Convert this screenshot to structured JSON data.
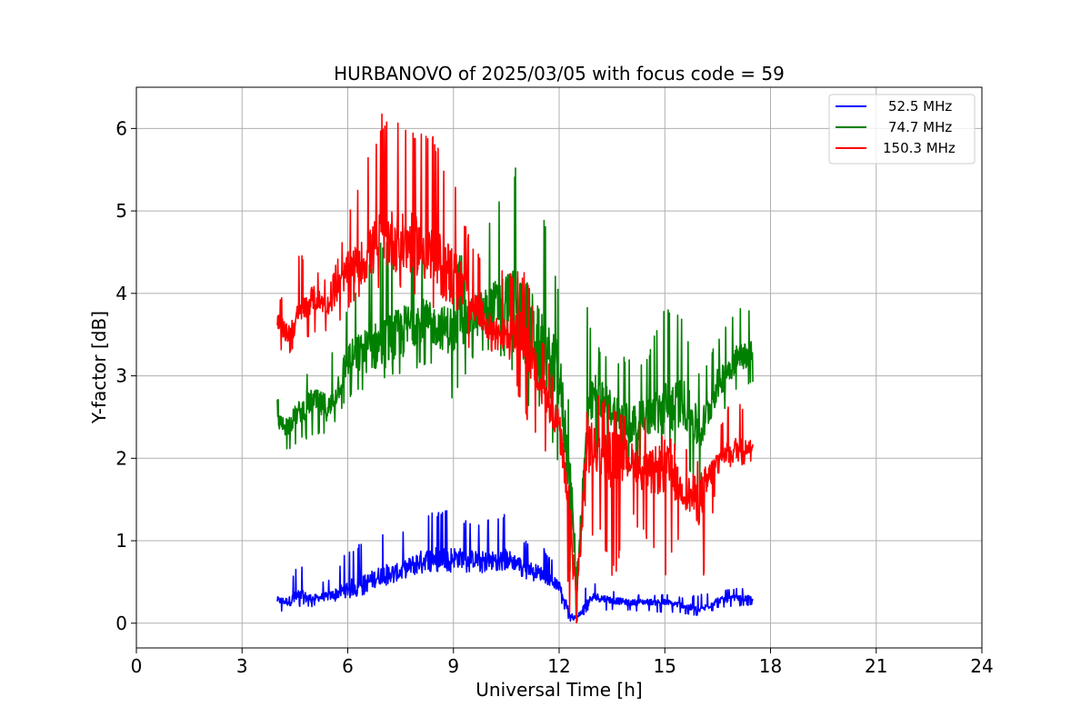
{
  "chart_data": {
    "type": "line",
    "title": "HURBANOVO of 2025/03/05 with focus code = 59",
    "xlabel": "Universal Time [h]",
    "ylabel": "Y-factor [dB]",
    "xlim": [
      0,
      24
    ],
    "ylim": [
      -0.3,
      6.5
    ],
    "x_ticks": [
      0,
      3,
      6,
      9,
      12,
      15,
      18,
      21,
      24
    ],
    "x_tick_labels": [
      "0",
      "3",
      "6",
      "9",
      "12",
      "15",
      "18",
      "21",
      "24"
    ],
    "y_ticks": [
      0,
      1,
      2,
      3,
      4,
      5,
      6
    ],
    "y_tick_labels": [
      "0",
      "1",
      "2",
      "3",
      "4",
      "5",
      "6"
    ],
    "grid": true,
    "legend_position": "top-right",
    "series": [
      {
        "name": "52.5 MHz",
        "color": "#0000ff",
        "x": [
          4.0,
          4.3,
          4.6,
          5.0,
          5.5,
          6.0,
          6.5,
          7.0,
          7.5,
          8.0,
          8.5,
          9.0,
          9.5,
          10.0,
          10.5,
          11.0,
          11.5,
          12.0,
          12.3,
          12.5,
          12.8,
          13.0,
          13.5,
          14.0,
          14.5,
          15.0,
          15.5,
          16.0,
          16.5,
          17.0,
          17.5
        ],
        "y": [
          0.28,
          0.26,
          0.32,
          0.3,
          0.33,
          0.42,
          0.48,
          0.6,
          0.62,
          0.75,
          0.8,
          0.8,
          0.78,
          0.75,
          0.78,
          0.7,
          0.6,
          0.45,
          0.12,
          0.05,
          0.25,
          0.32,
          0.28,
          0.25,
          0.26,
          0.25,
          0.22,
          0.15,
          0.28,
          0.3,
          0.3
        ],
        "max": [
          0.38,
          0.4,
          0.78,
          0.45,
          0.55,
          0.9,
          1.0,
          1.1,
          1.1,
          1.3,
          1.37,
          1.37,
          1.2,
          1.3,
          1.37,
          1.0,
          0.95,
          0.65,
          0.3,
          0.2,
          0.48,
          0.48,
          0.4,
          0.35,
          0.35,
          0.35,
          0.32,
          0.35,
          0.4,
          0.42,
          0.42
        ],
        "min": [
          0.15,
          0.12,
          0.2,
          0.2,
          0.25,
          0.3,
          0.35,
          0.45,
          0.5,
          0.6,
          0.62,
          0.62,
          0.6,
          0.62,
          0.65,
          0.55,
          0.45,
          0.3,
          0.02,
          0.0,
          0.15,
          0.18,
          0.15,
          0.15,
          0.15,
          0.12,
          0.12,
          0.08,
          0.18,
          0.2,
          0.22
        ]
      },
      {
        "name": "74.7 MHz",
        "color": "#008000",
        "x": [
          4.0,
          4.3,
          4.6,
          5.0,
          5.5,
          6.0,
          6.5,
          7.0,
          7.5,
          8.0,
          8.5,
          9.0,
          9.5,
          10.0,
          10.5,
          11.0,
          11.5,
          12.0,
          12.3,
          12.5,
          12.8,
          13.0,
          13.5,
          14.0,
          14.5,
          15.0,
          15.5,
          16.0,
          16.5,
          17.0,
          17.5
        ],
        "y": [
          2.4,
          2.4,
          2.55,
          2.7,
          2.6,
          3.2,
          3.3,
          3.4,
          3.5,
          3.7,
          3.6,
          3.55,
          3.7,
          3.8,
          3.9,
          3.7,
          3.3,
          3.0,
          1.8,
          0.5,
          2.4,
          2.8,
          2.6,
          2.4,
          2.5,
          2.6,
          2.7,
          2.3,
          2.9,
          3.2,
          3.3
        ],
        "max": [
          2.75,
          2.8,
          3.0,
          3.1,
          3.3,
          3.9,
          4.4,
          4.7,
          4.9,
          4.7,
          4.5,
          4.4,
          4.6,
          5.0,
          5.4,
          5.8,
          5.1,
          4.1,
          2.5,
          1.2,
          3.9,
          3.4,
          3.2,
          3.3,
          3.2,
          3.95,
          3.7,
          3.0,
          3.5,
          3.8,
          3.85
        ],
        "min": [
          2.05,
          2.1,
          2.2,
          2.25,
          2.3,
          2.7,
          2.85,
          2.9,
          3.0,
          3.1,
          3.1,
          2.6,
          3.2,
          3.3,
          3.2,
          2.6,
          2.5,
          1.9,
          0.5,
          0.0,
          1.9,
          2.0,
          1.9,
          1.8,
          2.0,
          2.0,
          2.0,
          1.6,
          2.4,
          2.8,
          2.9
        ]
      },
      {
        "name": "150.3 MHz",
        "color": "#ff0000",
        "x": [
          4.0,
          4.3,
          4.6,
          5.0,
          5.5,
          6.0,
          6.5,
          7.0,
          7.5,
          8.0,
          8.5,
          9.0,
          9.5,
          10.0,
          10.5,
          11.0,
          11.5,
          12.0,
          12.3,
          12.5,
          12.8,
          13.0,
          13.5,
          14.0,
          14.5,
          15.0,
          15.5,
          16.0,
          16.5,
          17.0,
          17.5
        ],
        "y": [
          3.65,
          3.5,
          3.7,
          3.95,
          3.85,
          4.3,
          4.4,
          4.7,
          4.6,
          4.6,
          4.4,
          4.2,
          3.9,
          3.6,
          3.5,
          3.5,
          2.8,
          2.4,
          1.2,
          0.3,
          2.2,
          2.1,
          2.0,
          2.0,
          1.8,
          1.9,
          1.6,
          1.5,
          2.0,
          2.1,
          2.15
        ],
        "max": [
          4.0,
          3.9,
          4.5,
          4.35,
          4.1,
          4.95,
          5.55,
          6.22,
          6.1,
          6.1,
          5.9,
          5.4,
          4.6,
          4.3,
          4.3,
          4.3,
          3.5,
          2.7,
          2.3,
          0.8,
          2.7,
          2.9,
          2.6,
          2.5,
          2.5,
          2.3,
          2.2,
          2.0,
          2.3,
          2.85,
          2.3
        ],
        "min": [
          3.3,
          3.25,
          3.4,
          3.5,
          3.5,
          3.8,
          3.95,
          4.0,
          4.05,
          3.9,
          3.7,
          3.1,
          3.3,
          3.3,
          3.3,
          2.5,
          2.2,
          1.6,
          0.1,
          0.0,
          0.02,
          1.4,
          0.4,
          1.3,
          1.0,
          0.4,
          1.2,
          0.1,
          1.8,
          1.9,
          1.95
        ]
      }
    ]
  }
}
